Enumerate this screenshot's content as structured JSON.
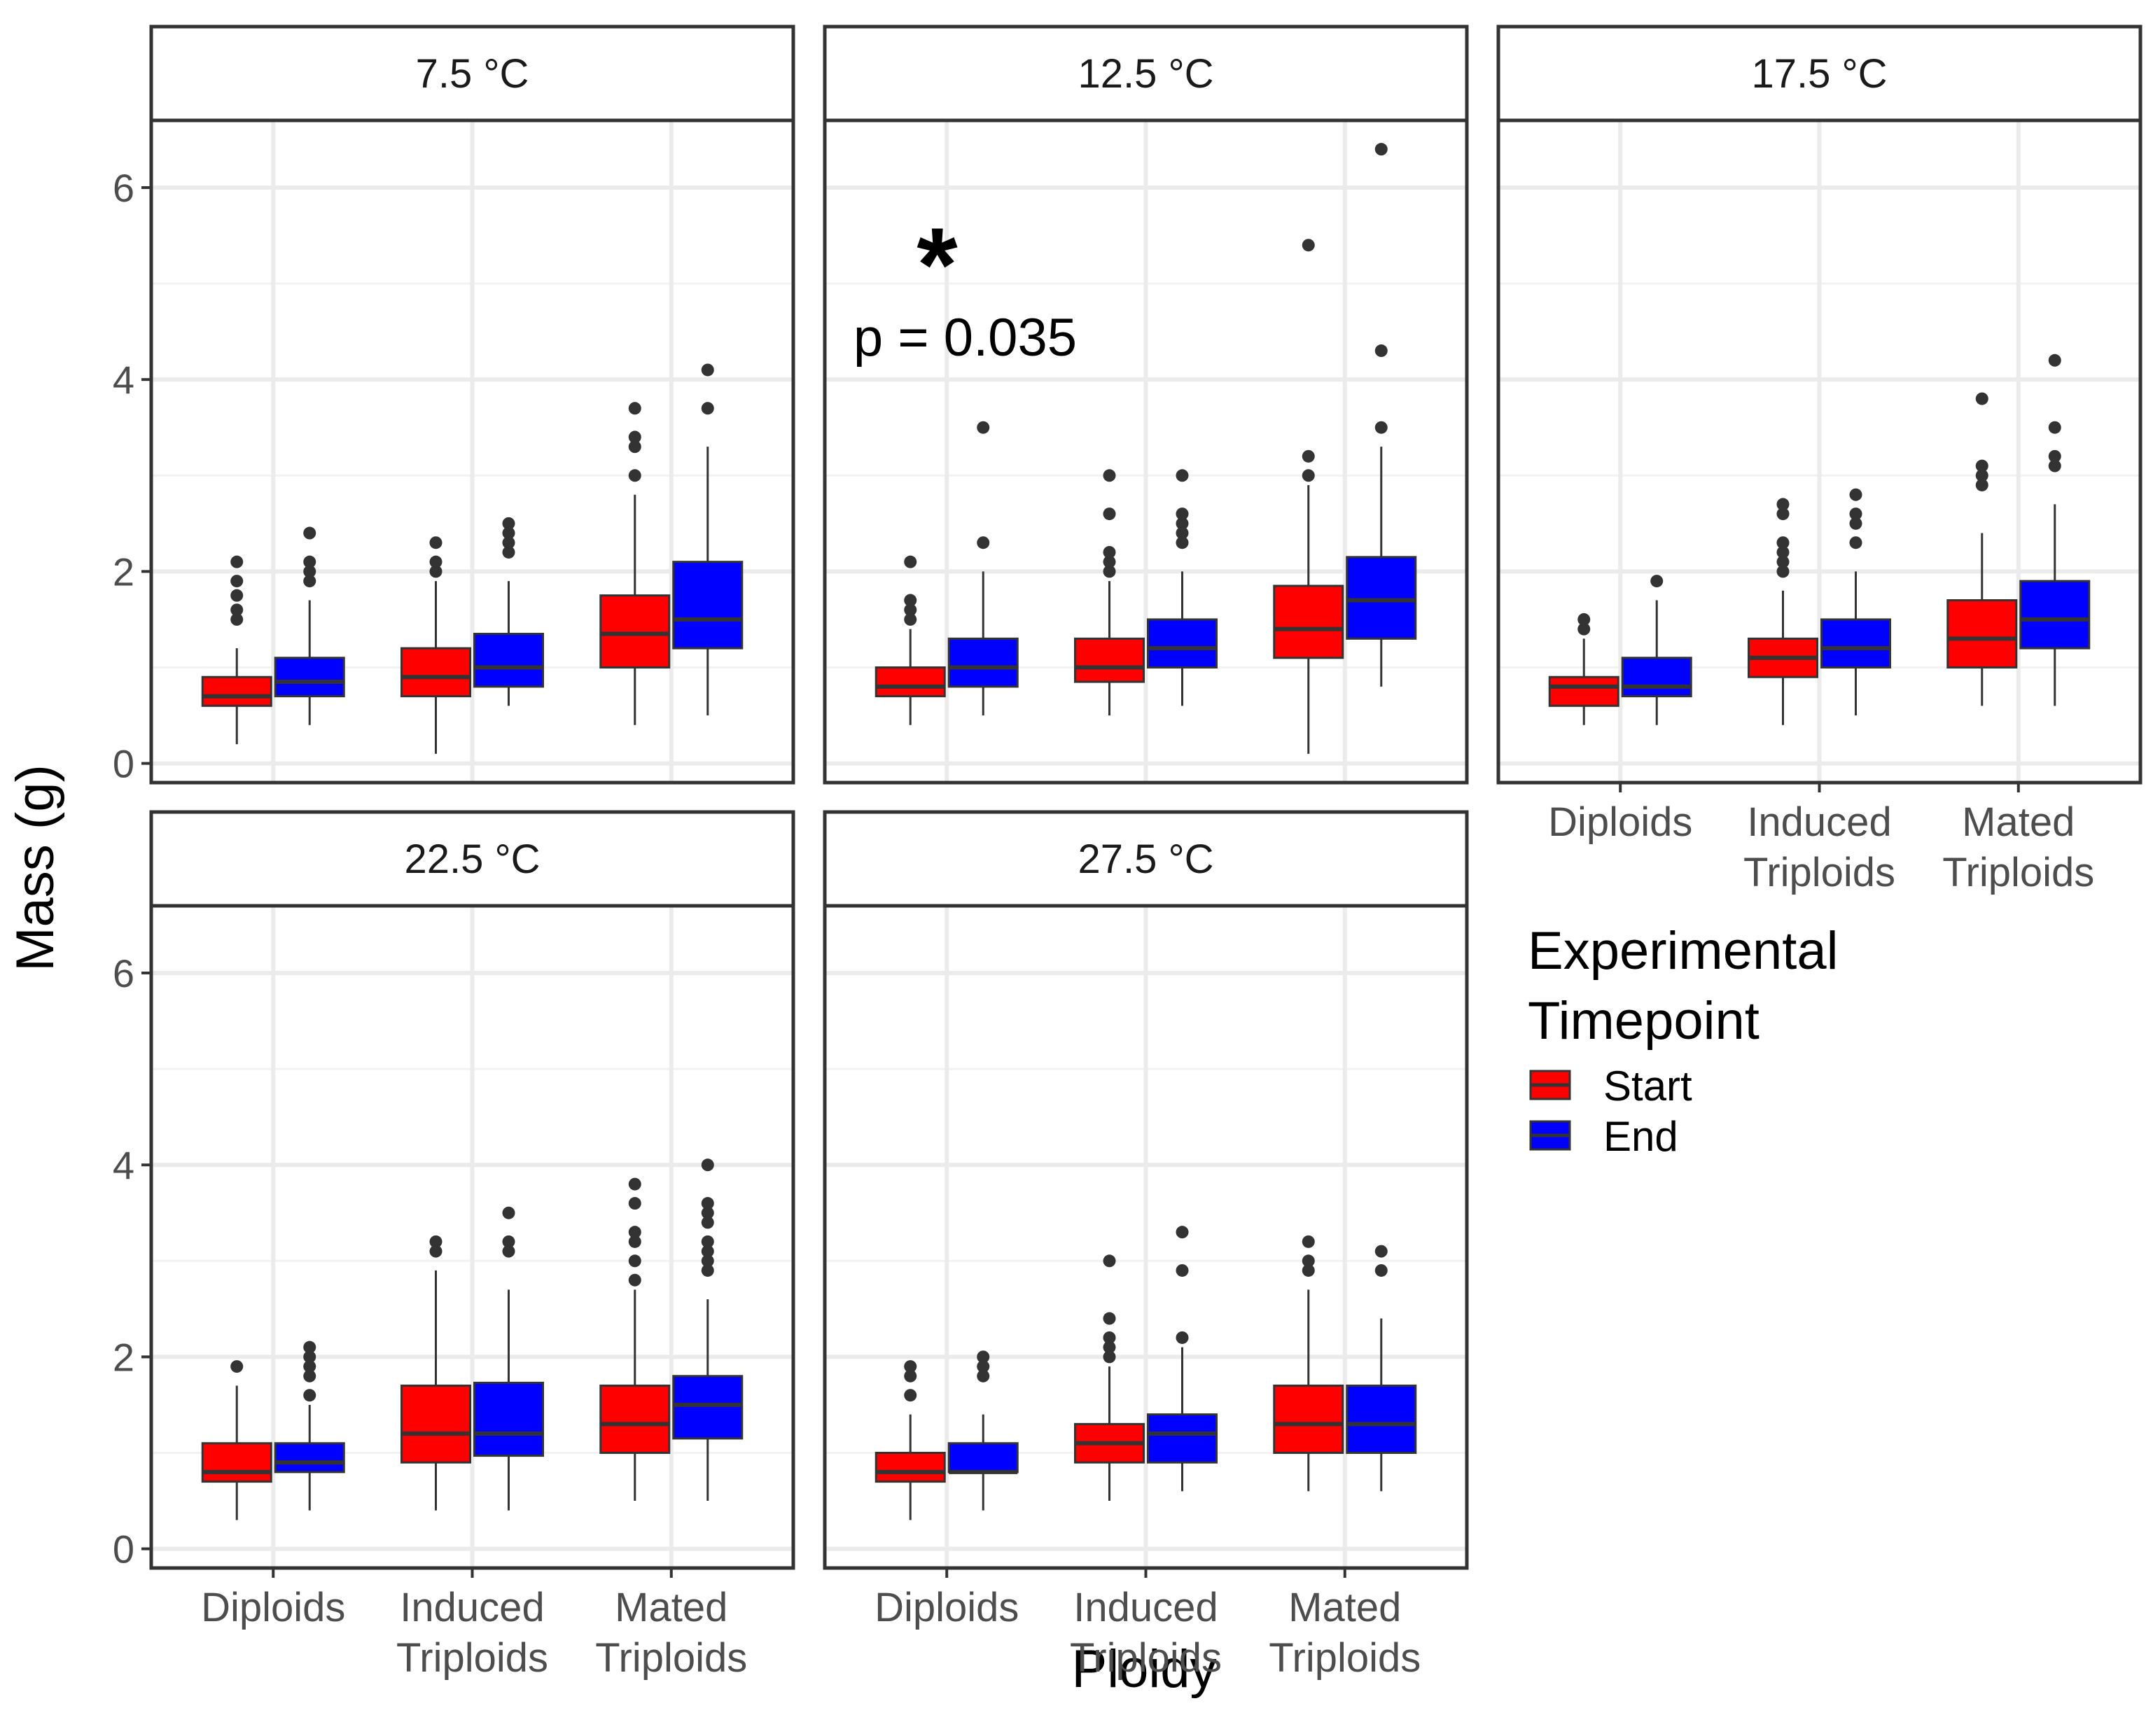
{
  "chart_data": {
    "type": "boxplot",
    "xlabel": "Ploidy",
    "ylabel": "Mass (g)",
    "ylim": [
      -0.2,
      6.7
    ],
    "yticks": [
      0,
      2,
      4,
      6
    ],
    "categories": [
      [
        "Diploids"
      ],
      [
        "Induced",
        "Triploids"
      ],
      [
        "Mated",
        "Triploids"
      ]
    ],
    "legend": {
      "title_lines": [
        "Experimental",
        "Timepoint"
      ],
      "position": "right",
      "items": [
        {
          "label": "Start",
          "color": "#ff0000"
        },
        {
          "label": "End",
          "color": "#0000ff"
        }
      ]
    },
    "colors": {
      "Start": "#ff0000",
      "End": "#0000ff"
    },
    "grid": true,
    "panels": [
      {
        "strip": "7.5 °C",
        "boxes": [
          {
            "category": 0,
            "group": "Start",
            "q1": 0.6,
            "median": 0.7,
            "q3": 0.9,
            "low": 0.2,
            "high": 1.2,
            "outliers": [
              1.5,
              1.6,
              1.75,
              1.9,
              2.1
            ]
          },
          {
            "category": 0,
            "group": "End",
            "q1": 0.7,
            "median": 0.85,
            "q3": 1.1,
            "low": 0.4,
            "high": 1.7,
            "outliers": [
              1.9,
              2.0,
              2.1,
              2.4
            ]
          },
          {
            "category": 1,
            "group": "Start",
            "q1": 0.7,
            "median": 0.9,
            "q3": 1.2,
            "low": 0.1,
            "high": 1.9,
            "outliers": [
              2.0,
              2.1,
              2.3
            ]
          },
          {
            "category": 1,
            "group": "End",
            "q1": 0.8,
            "median": 1.0,
            "q3": 1.35,
            "low": 0.6,
            "high": 1.9,
            "outliers": [
              2.2,
              2.3,
              2.4,
              2.5
            ]
          },
          {
            "category": 2,
            "group": "Start",
            "q1": 1.0,
            "median": 1.35,
            "q3": 1.75,
            "low": 0.4,
            "high": 2.8,
            "outliers": [
              3.0,
              3.3,
              3.4,
              3.7
            ]
          },
          {
            "category": 2,
            "group": "End",
            "q1": 1.2,
            "median": 1.5,
            "q3": 2.1,
            "low": 0.5,
            "high": 3.3,
            "outliers": [
              3.7,
              4.1
            ]
          }
        ]
      },
      {
        "strip": "12.5 °C",
        "annotation": {
          "star": "*",
          "text": "p = 0.035"
        },
        "boxes": [
          {
            "category": 0,
            "group": "Start",
            "q1": 0.7,
            "median": 0.8,
            "q3": 1.0,
            "low": 0.4,
            "high": 1.4,
            "outliers": [
              1.5,
              1.6,
              1.7,
              2.1
            ]
          },
          {
            "category": 0,
            "group": "End",
            "q1": 0.8,
            "median": 1.0,
            "q3": 1.3,
            "low": 0.5,
            "high": 2.0,
            "outliers": [
              2.3,
              3.5
            ]
          },
          {
            "category": 1,
            "group": "Start",
            "q1": 0.85,
            "median": 1.0,
            "q3": 1.3,
            "low": 0.5,
            "high": 1.9,
            "outliers": [
              2.0,
              2.1,
              2.2,
              2.6,
              3.0
            ]
          },
          {
            "category": 1,
            "group": "End",
            "q1": 1.0,
            "median": 1.2,
            "q3": 1.5,
            "low": 0.6,
            "high": 2.0,
            "outliers": [
              2.3,
              2.4,
              2.5,
              2.6,
              3.0
            ]
          },
          {
            "category": 2,
            "group": "Start",
            "q1": 1.1,
            "median": 1.4,
            "q3": 1.85,
            "low": 0.1,
            "high": 2.9,
            "outliers": [
              3.0,
              3.2,
              5.4
            ]
          },
          {
            "category": 2,
            "group": "End",
            "q1": 1.3,
            "median": 1.7,
            "q3": 2.15,
            "low": 0.8,
            "high": 3.3,
            "outliers": [
              3.5,
              4.3,
              6.4
            ]
          }
        ]
      },
      {
        "strip": "17.5 °C",
        "boxes": [
          {
            "category": 0,
            "group": "Start",
            "q1": 0.6,
            "median": 0.8,
            "q3": 0.9,
            "low": 0.4,
            "high": 1.3,
            "outliers": [
              1.4,
              1.5
            ]
          },
          {
            "category": 0,
            "group": "End",
            "q1": 0.7,
            "median": 0.8,
            "q3": 1.1,
            "low": 0.4,
            "high": 1.7,
            "outliers": [
              1.9
            ]
          },
          {
            "category": 1,
            "group": "Start",
            "q1": 0.9,
            "median": 1.1,
            "q3": 1.3,
            "low": 0.4,
            "high": 1.8,
            "outliers": [
              2.0,
              2.1,
              2.2,
              2.3,
              2.6,
              2.7
            ]
          },
          {
            "category": 1,
            "group": "End",
            "q1": 1.0,
            "median": 1.2,
            "q3": 1.5,
            "low": 0.5,
            "high": 2.0,
            "outliers": [
              2.3,
              2.5,
              2.6,
              2.8
            ]
          },
          {
            "category": 2,
            "group": "Start",
            "q1": 1.0,
            "median": 1.3,
            "q3": 1.7,
            "low": 0.6,
            "high": 2.4,
            "outliers": [
              2.9,
              3.0,
              3.1,
              3.8
            ]
          },
          {
            "category": 2,
            "group": "End",
            "q1": 1.2,
            "median": 1.5,
            "q3": 1.9,
            "low": 0.6,
            "high": 2.7,
            "outliers": [
              3.1,
              3.2,
              3.5,
              4.2
            ]
          }
        ]
      },
      {
        "strip": "22.5 °C",
        "boxes": [
          {
            "category": 0,
            "group": "Start",
            "q1": 0.7,
            "median": 0.8,
            "q3": 1.1,
            "low": 0.3,
            "high": 1.7,
            "outliers": [
              1.9
            ]
          },
          {
            "category": 0,
            "group": "End",
            "q1": 0.8,
            "median": 0.9,
            "q3": 1.1,
            "low": 0.4,
            "high": 1.5,
            "outliers": [
              1.6,
              1.8,
              1.9,
              2.0,
              2.1
            ]
          },
          {
            "category": 1,
            "group": "Start",
            "q1": 0.9,
            "median": 1.2,
            "q3": 1.7,
            "low": 0.4,
            "high": 2.9,
            "outliers": [
              3.1,
              3.2
            ]
          },
          {
            "category": 1,
            "group": "End",
            "q1": 0.97,
            "median": 1.2,
            "q3": 1.73,
            "low": 0.4,
            "high": 2.7,
            "outliers": [
              3.1,
              3.2,
              3.5
            ]
          },
          {
            "category": 2,
            "group": "Start",
            "q1": 1.0,
            "median": 1.3,
            "q3": 1.7,
            "low": 0.5,
            "high": 2.7,
            "outliers": [
              2.8,
              3.0,
              3.2,
              3.3,
              3.6,
              3.8
            ]
          },
          {
            "category": 2,
            "group": "End",
            "q1": 1.15,
            "median": 1.5,
            "q3": 1.8,
            "low": 0.5,
            "high": 2.6,
            "outliers": [
              2.9,
              3.0,
              3.1,
              3.2,
              3.4,
              3.5,
              3.6,
              4.0
            ]
          }
        ]
      },
      {
        "strip": "27.5 °C",
        "boxes": [
          {
            "category": 0,
            "group": "Start",
            "q1": 0.7,
            "median": 0.8,
            "q3": 1.0,
            "low": 0.3,
            "high": 1.4,
            "outliers": [
              1.6,
              1.8,
              1.9
            ]
          },
          {
            "category": 0,
            "group": "End",
            "q1": 0.8,
            "median": 0.8,
            "q3": 1.1,
            "low": 0.4,
            "high": 1.4,
            "outliers": [
              1.8,
              1.9,
              2.0
            ]
          },
          {
            "category": 1,
            "group": "Start",
            "q1": 0.9,
            "median": 1.1,
            "q3": 1.3,
            "low": 0.5,
            "high": 1.9,
            "outliers": [
              2.0,
              2.1,
              2.2,
              2.4,
              3.0
            ]
          },
          {
            "category": 1,
            "group": "End",
            "q1": 0.9,
            "median": 1.2,
            "q3": 1.4,
            "low": 0.6,
            "high": 2.1,
            "outliers": [
              2.2,
              2.9,
              3.3
            ]
          },
          {
            "category": 2,
            "group": "Start",
            "q1": 1.0,
            "median": 1.3,
            "q3": 1.7,
            "low": 0.6,
            "high": 2.7,
            "outliers": [
              2.9,
              3.0,
              3.2
            ]
          },
          {
            "category": 2,
            "group": "End",
            "q1": 1.0,
            "median": 1.3,
            "q3": 1.7,
            "low": 0.6,
            "high": 2.4,
            "outliers": [
              2.9,
              3.1
            ]
          }
        ]
      }
    ]
  }
}
